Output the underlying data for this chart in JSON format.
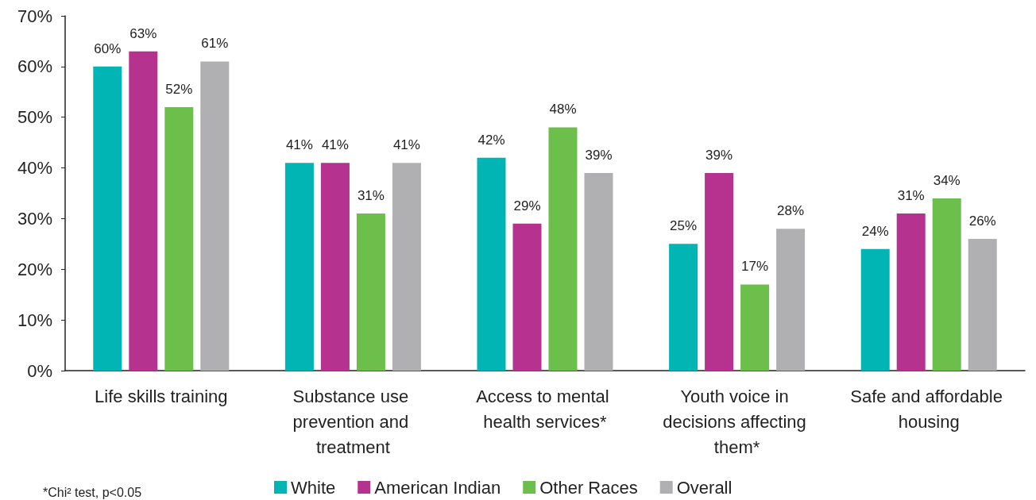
{
  "chart_data": {
    "type": "bar",
    "categories": [
      "Life skills training",
      "Substance use prevention and treatment",
      "Access to mental health services*",
      "Youth voice in decisions affecting them*",
      "Safe and affordable housing"
    ],
    "series": [
      {
        "name": "White",
        "color": "#00b5b3",
        "values": [
          60,
          41,
          42,
          25,
          24
        ],
        "value_labels": [
          "60%",
          "41%",
          "42%",
          "25%",
          "24%"
        ]
      },
      {
        "name": "American Indian",
        "color": "#b5338f",
        "values": [
          63,
          41,
          29,
          39,
          31
        ],
        "value_labels": [
          "63%",
          "41%",
          "29%",
          "39%",
          "31%"
        ]
      },
      {
        "name": "Other Races",
        "color": "#6cbf4a",
        "values": [
          52,
          31,
          48,
          17,
          34
        ],
        "value_labels": [
          "52%",
          "31%",
          "48%",
          "17%",
          "34%"
        ]
      },
      {
        "name": "Overall",
        "color": "#b0b0b2",
        "values": [
          61,
          41,
          39,
          28,
          26
        ],
        "value_labels": [
          "61%",
          "41%",
          "39%",
          "28%",
          "26%"
        ]
      }
    ],
    "ylim": [
      0,
      70
    ],
    "yticks": [
      {
        "value": 0,
        "label": "0%"
      },
      {
        "value": 10,
        "label": "10%"
      },
      {
        "value": 20,
        "label": "20%"
      },
      {
        "value": 30,
        "label": "30%"
      },
      {
        "value": 40,
        "label": "40%"
      },
      {
        "value": 50,
        "label": "50%"
      },
      {
        "value": 60,
        "label": "60%"
      },
      {
        "value": 70,
        "label": "70%"
      }
    ],
    "grid": false,
    "legend": "bottom",
    "annotations": [
      "*Chi² test, p<0.05"
    ]
  }
}
